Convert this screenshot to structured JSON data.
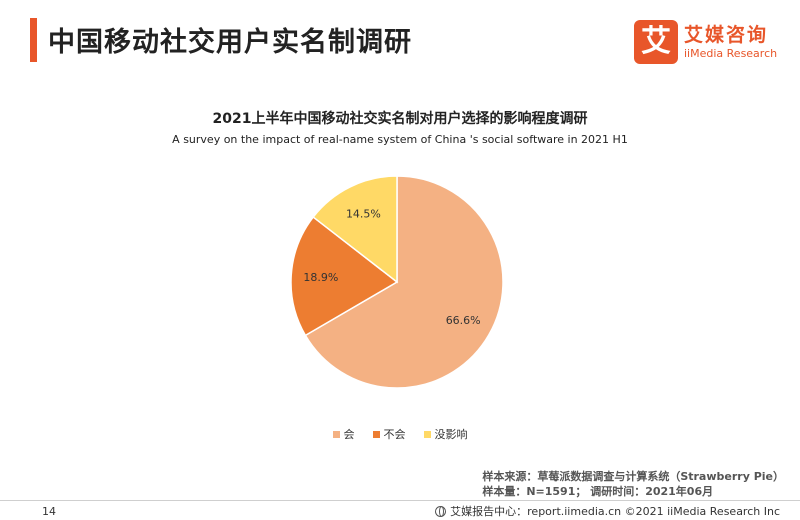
{
  "header": {
    "title": "中国移动社交用户实名制调研",
    "accent_color": "#e8562a"
  },
  "logo": {
    "mark": "艾",
    "name_cn": "艾媒咨询",
    "name_en": "iiMedia Research"
  },
  "chart_data": {
    "type": "pie",
    "title": "2021上半年中国移动社交实名制对用户选择的影响程度调研",
    "subtitle": "A survey on the impact of real-name system of China 's social software in 2021 H1",
    "slices": [
      {
        "label": "会",
        "value": 66.6,
        "value_label": "66.6%",
        "color": "#f4b183"
      },
      {
        "label": "不会",
        "value": 18.9,
        "value_label": "18.9%",
        "color": "#ed7d31"
      },
      {
        "label": "没影响",
        "value": 14.5,
        "value_label": "14.5%",
        "color": "#ffd966"
      }
    ],
    "start": "12 o'clock",
    "direction": "clockwise",
    "legend_position": "bottom"
  },
  "source": {
    "line1": "样本来源：草莓派数据调查与计算系统（Strawberry Pie）",
    "line2": "样本量：N=1591； 调研时间：2021年06月"
  },
  "footer": {
    "page_number": "14",
    "info": "艾媒报告中心：report.iimedia.cn ©2021 iiMedia Research Inc"
  }
}
